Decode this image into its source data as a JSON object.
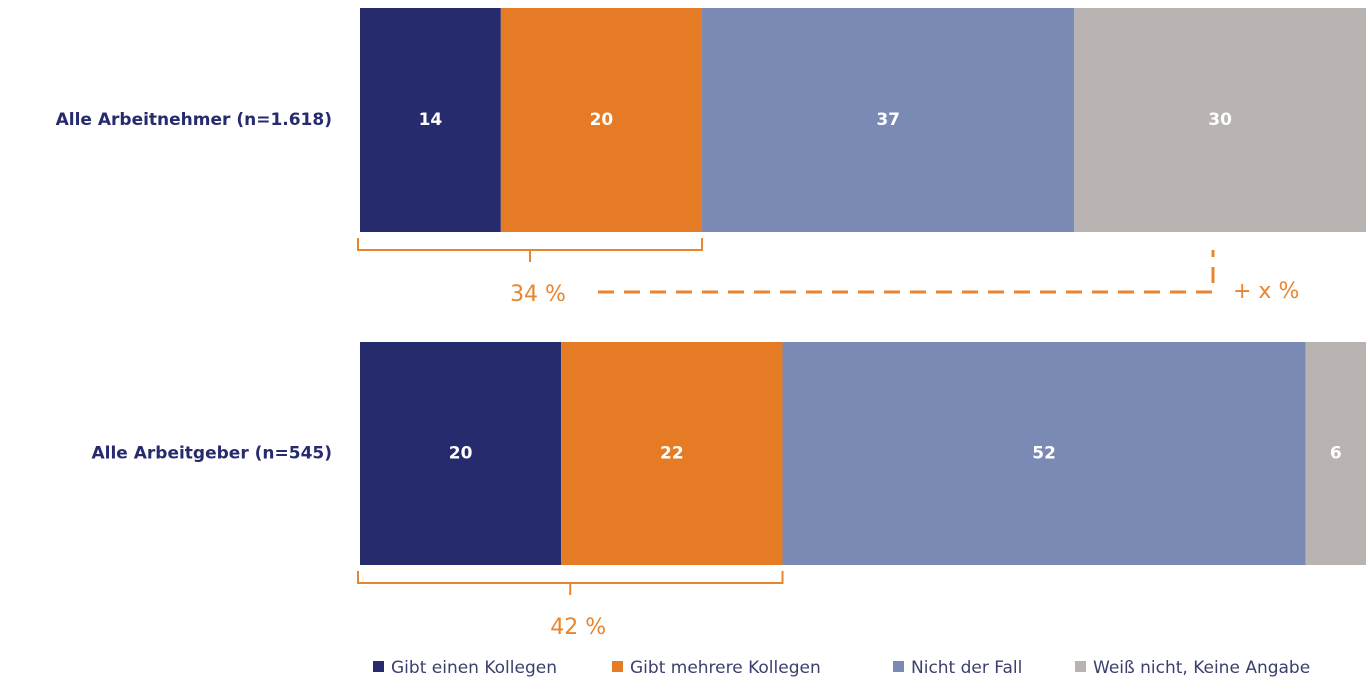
{
  "chart_data": {
    "type": "stacked-bar",
    "categories": [
      "Alle Arbeitnehmer (n=1.618)",
      "Alle Arbeitgeber (n=545)"
    ],
    "series": [
      {
        "name": "Gibt einen Kollegen",
        "color": "#262b6e",
        "values": [
          14,
          20
        ]
      },
      {
        "name": "Gibt mehrere Kollegen",
        "color": "#e57b25",
        "values": [
          20,
          22
        ]
      },
      {
        "name": "Nicht der Fall",
        "color": "#7b8ab5",
        "values": [
          37,
          52
        ]
      },
      {
        "name": "Weiß nicht, Keine Angabe",
        "color": "#b8b2b0",
        "values": [
          30,
          6
        ]
      }
    ],
    "xlim": [
      0,
      100
    ],
    "annotations": [
      "34 %",
      "42 %",
      "+ x %"
    ]
  }
}
